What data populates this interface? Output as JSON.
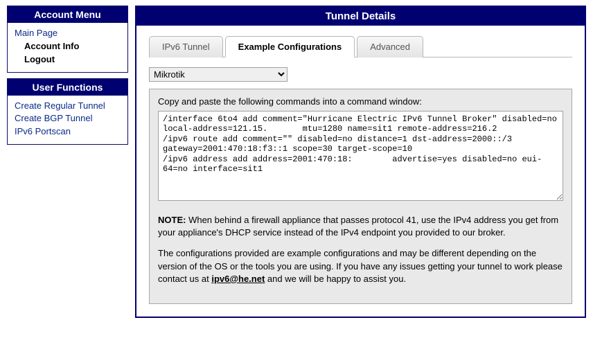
{
  "sidebar": {
    "account_menu": {
      "title": "Account Menu",
      "main_page": "Main Page",
      "account_info": "Account Info",
      "logout": "Logout"
    },
    "user_functions": {
      "title": "User Functions",
      "create_regular": "Create Regular Tunnel",
      "create_bgp": "Create BGP Tunnel",
      "portscan": "IPv6 Portscan"
    }
  },
  "main": {
    "title": "Tunnel Details",
    "tabs": {
      "ipv6": "IPv6 Tunnel",
      "example": "Example Configurations",
      "advanced": "Advanced"
    },
    "selected_os": "Mikrotik",
    "config": {
      "caption": "Copy and paste the following commands into a command window:",
      "commands": "/interface 6to4 add comment=\"Hurricane Electric IPv6 Tunnel Broker\" disabled=no local-address=121.15.       mtu=1280 name=sit1 remote-address=216.2\n/ipv6 route add comment=\"\" disabled=no distance=1 dst-address=2000::/3 gateway=2001:470:18:f3::1 scope=30 target-scope=10\n/ipv6 address add address=2001:470:18:        advertise=yes disabled=no eui-64=no interface=sit1"
    },
    "note": {
      "label": "NOTE:",
      "text1_rest": " When behind a firewall appliance that passes protocol 41, use the IPv4 address you get from your appliance's DHCP service instead of the IPv4 endpoint you provided to our broker.",
      "text2_before": "The configurations provided are example configurations and may be different depending on the version of the OS or the tools you are using. If you have any issues getting your tunnel to work please contact us at ",
      "email": "ipv6@he.net",
      "text2_after": " and we will be happy to assist you."
    }
  }
}
